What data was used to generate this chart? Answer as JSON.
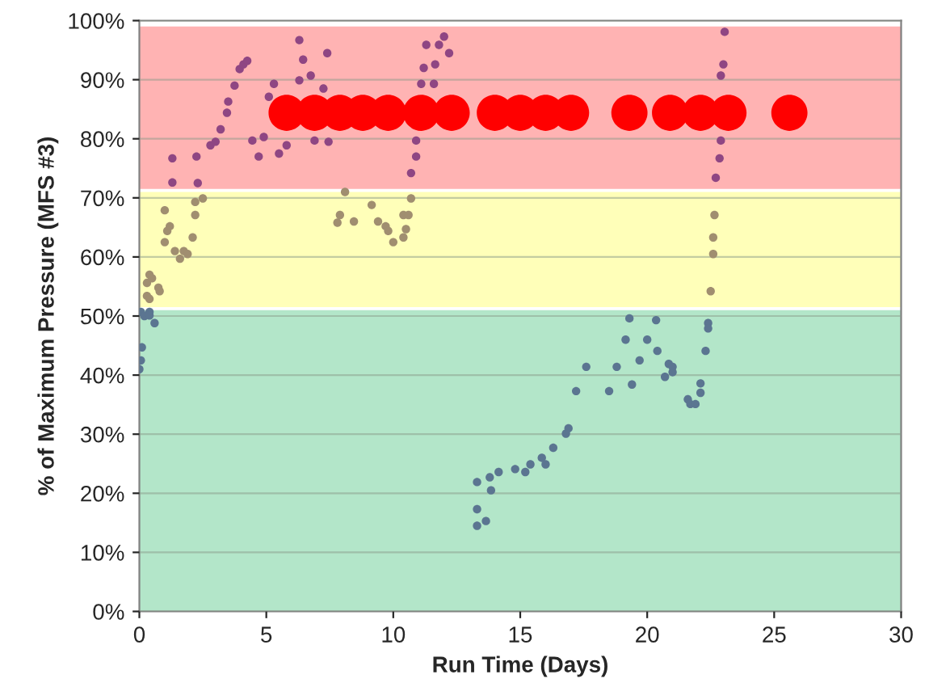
{
  "chart_data": {
    "type": "scatter",
    "xlabel": "Run Time (Days)",
    "ylabel": "% of Maximum Pressure (MFS #3)",
    "xlim": [
      0,
      30
    ],
    "xticks": [
      0,
      5,
      10,
      15,
      20,
      25,
      30
    ],
    "ylim": [
      0,
      100
    ],
    "yticks": [
      {
        "value": 0,
        "label": "0%"
      },
      {
        "value": 10,
        "label": "10%"
      },
      {
        "value": 20,
        "label": "20%"
      },
      {
        "value": 30,
        "label": "30%"
      },
      {
        "value": 40,
        "label": "40%"
      },
      {
        "value": 50,
        "label": "50%"
      },
      {
        "value": 60,
        "label": "60%"
      },
      {
        "value": 70,
        "label": "70%"
      },
      {
        "value": 80,
        "label": "80%"
      },
      {
        "value": 90,
        "label": "90%"
      },
      {
        "value": 100,
        "label": "100%"
      }
    ],
    "grid": "y",
    "marker": "circle",
    "bands": [
      {
        "axis": "y",
        "from": 0,
        "to": 51,
        "color": "#b3e6c9"
      },
      {
        "axis": "y",
        "from": 51.5,
        "to": 71,
        "color": "#ffffb9"
      },
      {
        "axis": "y",
        "from": 71.5,
        "to": 99,
        "color": "#ffb3b3"
      }
    ],
    "series": [
      {
        "color": "#5b7591",
        "x": [
          0.0,
          0.06,
          0.06,
          0.1,
          0.2,
          0.4,
          0.4,
          0.6,
          13.3,
          13.65,
          13.3,
          13.3,
          13.8,
          13.85,
          14.15,
          14.8,
          15.2,
          15.4,
          15.85,
          16.0,
          16.3,
          16.8,
          16.9,
          17.2,
          17.6,
          18.5,
          18.8,
          19.15,
          19.3,
          19.4,
          19.7,
          20.0,
          20.35,
          20.4,
          20.7,
          20.85,
          21.0,
          21.0,
          21.6,
          21.7,
          21.9,
          22.1,
          22.1,
          22.3,
          22.4,
          22.4
        ],
        "values": [
          41,
          42.5,
          50.7,
          44.7,
          50,
          50.7,
          50.1,
          48.8,
          14.5,
          15.3,
          17.3,
          21.9,
          22.7,
          20.5,
          23.6,
          24.1,
          23.6,
          24.9,
          26,
          24.9,
          27.7,
          30.1,
          31,
          37.3,
          41.4,
          37.3,
          41.4,
          46,
          49.6,
          38.4,
          42.5,
          46,
          49.3,
          44.1,
          39.7,
          41.9,
          40.5,
          41.4,
          35.9,
          35.1,
          35.1,
          38.6,
          37,
          44.1,
          48.8,
          47.9
        ]
      },
      {
        "color": "#a08e70",
        "x": [
          0.3,
          0.3,
          0.4,
          0.4,
          0.5,
          0.75,
          0.8,
          1.0,
          1.0,
          1.1,
          1.2,
          1.4,
          1.6,
          1.75,
          1.9,
          2.1,
          2.2,
          2.2,
          2.5,
          7.8,
          7.9,
          8.1,
          8.45,
          9.15,
          9.4,
          9.7,
          9.8,
          10.0,
          10.4,
          10.4,
          10.5,
          10.6,
          10.7,
          22.5,
          22.6,
          22.6,
          22.65
        ],
        "values": [
          55.6,
          53.4,
          52.9,
          57,
          56.4,
          54.8,
          54.2,
          62.5,
          67.9,
          64.4,
          65.2,
          61,
          59.7,
          61,
          60.5,
          63.3,
          67.1,
          69.3,
          69.9,
          65.8,
          67.1,
          71,
          66,
          68.8,
          66,
          65.2,
          64.4,
          62.5,
          63.3,
          67.1,
          64.7,
          67.1,
          69.9,
          54.2,
          60.5,
          63.3,
          67.1
        ]
      },
      {
        "color": "#8f4683",
        "x": [
          1.3,
          1.3,
          2.25,
          2.3,
          2.8,
          3.0,
          3.2,
          3.45,
          3.5,
          3.75,
          3.95,
          4.1,
          4.25,
          4.45,
          4.7,
          4.9,
          5.1,
          5.3,
          5.5,
          5.8,
          6.3,
          6.3,
          6.45,
          6.75,
          6.9,
          7.25,
          7.4,
          7.45,
          10.7,
          10.9,
          10.9,
          11.1,
          11.2,
          11.3,
          11.6,
          11.65,
          11.8,
          12.0,
          12.2,
          22.7,
          22.85,
          22.9,
          22.9,
          23.0,
          23.05
        ],
        "values": [
          76.7,
          72.6,
          77,
          72.5,
          78.9,
          79.5,
          81.6,
          84.4,
          86.3,
          89,
          91.8,
          92.6,
          93.2,
          79.7,
          77,
          80.3,
          87.1,
          89.3,
          77.5,
          78.9,
          89.9,
          96.7,
          93.4,
          90.7,
          79.7,
          88.5,
          94.5,
          79.5,
          74.2,
          77,
          79.7,
          89.3,
          92,
          95.9,
          89.3,
          92.6,
          95.9,
          97.3,
          94.5,
          73.4,
          76.7,
          79.7,
          90.7,
          92.6,
          98.1
        ]
      },
      {
        "color": "#ff0000",
        "type": "bubble",
        "sizes": [
          1,
          1,
          1,
          1,
          1,
          1,
          1,
          1,
          1,
          1,
          1,
          1,
          1,
          1,
          1,
          1
        ],
        "x": [
          5.8,
          6.9,
          7.9,
          8.8,
          9.8,
          11.1,
          12.3,
          14.0,
          15.0,
          16.0,
          17.0,
          19.3,
          20.9,
          22.1,
          23.2,
          25.6
        ],
        "values": [
          84.4,
          84.4,
          84.4,
          84.4,
          84.4,
          84.4,
          84.4,
          84.4,
          84.4,
          84.4,
          84.4,
          84.4,
          84.4,
          84.4,
          84.4,
          84.4
        ]
      }
    ]
  }
}
